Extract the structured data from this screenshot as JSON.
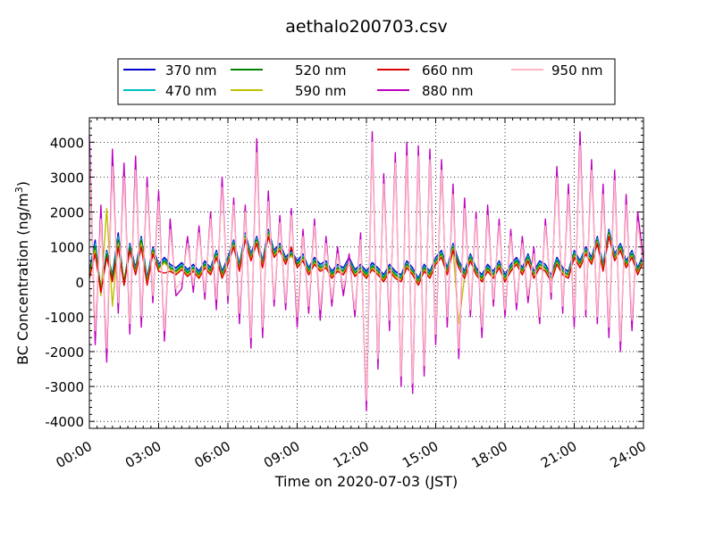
{
  "chart_data": {
    "type": "line",
    "title": "aethalo200703.csv",
    "xlabel": "Time on 2020-07-03 (JST)",
    "ylabel": "BC Concentration (ng/m",
    "ylabel_sup": "3",
    "ylabel_close": ")",
    "xlim": [
      "00:00",
      "24:00"
    ],
    "ylim": [
      -4200,
      4700
    ],
    "x_ticks": [
      "00:00",
      "03:00",
      "06:00",
      "09:00",
      "12:00",
      "15:00",
      "18:00",
      "21:00",
      "24:00"
    ],
    "y_ticks": [
      4000,
      3000,
      2000,
      1000,
      0,
      -1000,
      -2000,
      -3000,
      -4000
    ],
    "grid": true,
    "legend_placement": "top-center",
    "x_hours": [
      0,
      0.25,
      0.5,
      0.75,
      1,
      1.25,
      1.5,
      1.75,
      2,
      2.25,
      2.5,
      2.75,
      3,
      3.25,
      3.5,
      3.75,
      4,
      4.25,
      4.5,
      4.75,
      5,
      5.25,
      5.5,
      5.75,
      6,
      6.25,
      6.5,
      6.75,
      7,
      7.25,
      7.5,
      7.75,
      8,
      8.25,
      8.5,
      8.75,
      9,
      9.25,
      9.5,
      9.75,
      10,
      10.25,
      10.5,
      10.75,
      11,
      11.25,
      11.5,
      11.75,
      12,
      12.25,
      12.5,
      12.75,
      13,
      13.25,
      13.5,
      13.75,
      14,
      14.25,
      14.5,
      14.75,
      15,
      15.25,
      15.5,
      15.75,
      16,
      16.25,
      16.5,
      16.75,
      17,
      17.25,
      17.5,
      17.75,
      18,
      18.25,
      18.5,
      18.75,
      19,
      19.25,
      19.5,
      19.75,
      20,
      20.25,
      20.5,
      20.75,
      21,
      21.25,
      21.5,
      21.75,
      22,
      22.25,
      22.5,
      22.75,
      23,
      23.25,
      23.5,
      23.75,
      24
    ],
    "series": [
      {
        "name": "370 nm",
        "color": "#0000cc",
        "values": [
          300,
          1200,
          -300,
          900,
          200,
          1400,
          -100,
          1100,
          400,
          1300,
          100,
          1000,
          500,
          700,
          500,
          400,
          550,
          350,
          500,
          300,
          600,
          400,
          900,
          300,
          700,
          1200,
          500,
          1400,
          800,
          1300,
          600,
          1500,
          900,
          1100,
          700,
          900,
          600,
          800,
          400,
          700,
          500,
          600,
          300,
          500,
          400,
          700,
          350,
          500,
          300,
          550,
          400,
          200,
          500,
          300,
          200,
          600,
          400,
          100,
          500,
          300,
          700,
          900,
          400,
          1100,
          600,
          300,
          800,
          400,
          200,
          500,
          300,
          600,
          200,
          500,
          700,
          400,
          800,
          300,
          600,
          500,
          200,
          700,
          400,
          300,
          900,
          600,
          1000,
          700,
          1300,
          500,
          1500,
          800,
          1100,
          600,
          900,
          400,
          800
        ]
      },
      {
        "name": "470 nm",
        "color": "#00bfbf",
        "values": [
          250,
          1100,
          -250,
          850,
          150,
          1300,
          -50,
          1050,
          350,
          1250,
          50,
          950,
          450,
          650,
          450,
          350,
          500,
          300,
          450,
          250,
          550,
          350,
          850,
          250,
          650,
          1150,
          450,
          1350,
          750,
          1250,
          550,
          1450,
          850,
          1050,
          650,
          850,
          550,
          750,
          350,
          650,
          450,
          550,
          250,
          450,
          350,
          650,
          300,
          450,
          250,
          500,
          350,
          150,
          450,
          250,
          150,
          550,
          350,
          50,
          450,
          250,
          650,
          850,
          350,
          1050,
          550,
          250,
          750,
          350,
          150,
          450,
          250,
          550,
          150,
          450,
          650,
          350,
          750,
          250,
          550,
          450,
          150,
          650,
          350,
          250,
          850,
          550,
          950,
          650,
          1250,
          450,
          1450,
          750,
          1050,
          550,
          850,
          350,
          750
        ]
      },
      {
        "name": "520 nm",
        "color": "#008000",
        "values": [
          200,
          1000,
          -200,
          800,
          100,
          1200,
          0,
          1000,
          300,
          1200,
          0,
          900,
          400,
          600,
          400,
          300,
          450,
          250,
          400,
          200,
          500,
          300,
          800,
          200,
          600,
          1100,
          400,
          1300,
          700,
          1200,
          500,
          1400,
          800,
          1000,
          600,
          800,
          500,
          700,
          300,
          600,
          400,
          500,
          200,
          400,
          300,
          600,
          250,
          400,
          200,
          450,
          300,
          100,
          400,
          200,
          100,
          500,
          300,
          0,
          400,
          200,
          600,
          800,
          300,
          1000,
          500,
          200,
          700,
          300,
          100,
          400,
          200,
          500,
          100,
          400,
          600,
          300,
          700,
          200,
          500,
          400,
          100,
          600,
          300,
          200,
          800,
          500,
          900,
          600,
          1200,
          400,
          1400,
          700,
          1000,
          500,
          800,
          300,
          700
        ]
      },
      {
        "name": "590 nm",
        "color": "#bfbf00",
        "values": [
          150,
          900,
          -400,
          2100,
          -700,
          1100,
          -100,
          900,
          250,
          1100,
          -50,
          850,
          350,
          550,
          350,
          250,
          400,
          200,
          350,
          150,
          450,
          250,
          750,
          150,
          550,
          1050,
          350,
          1250,
          650,
          1150,
          450,
          1350,
          750,
          950,
          550,
          750,
          450,
          650,
          250,
          550,
          350,
          450,
          150,
          350,
          250,
          550,
          200,
          350,
          150,
          400,
          250,
          50,
          350,
          150,
          50,
          450,
          250,
          -50,
          350,
          150,
          550,
          750,
          250,
          950,
          -1200,
          150,
          650,
          250,
          50,
          350,
          150,
          450,
          50,
          350,
          550,
          250,
          650,
          150,
          450,
          350,
          50,
          550,
          250,
          150,
          750,
          450,
          850,
          550,
          1150,
          350,
          1350,
          650,
          950,
          450,
          750,
          250,
          650
        ]
      },
      {
        "name": "660 nm",
        "color": "#dd0000",
        "values": [
          100,
          800,
          -300,
          700,
          0,
          1000,
          -100,
          900,
          200,
          1000,
          -100,
          800,
          300,
          250,
          300,
          200,
          350,
          150,
          300,
          100,
          400,
          200,
          700,
          100,
          500,
          1000,
          300,
          1200,
          600,
          1100,
          400,
          1300,
          700,
          900,
          500,
          1000,
          400,
          600,
          200,
          500,
          300,
          400,
          100,
          300,
          200,
          500,
          150,
          300,
          100,
          350,
          200,
          0,
          300,
          100,
          0,
          400,
          200,
          -100,
          300,
          100,
          500,
          700,
          200,
          900,
          400,
          100,
          600,
          200,
          0,
          300,
          100,
          400,
          0,
          300,
          500,
          200,
          600,
          100,
          400,
          300,
          0,
          500,
          200,
          100,
          700,
          400,
          800,
          500,
          1100,
          300,
          1300,
          600,
          900,
          400,
          700,
          200,
          600
        ]
      },
      {
        "name": "880 nm",
        "color": "#bf00bf",
        "values": [
          4200,
          -1800,
          2200,
          -2300,
          3800,
          -900,
          3400,
          -1500,
          3600,
          -1300,
          3000,
          -600,
          2600,
          -1700,
          1800,
          -400,
          -200,
          1300,
          -300,
          1600,
          -500,
          2000,
          -800,
          3000,
          -600,
          2400,
          -1200,
          2200,
          -1900,
          4100,
          -1600,
          2600,
          -700,
          1900,
          -800,
          2100,
          -1300,
          1500,
          -900,
          1800,
          -1100,
          1300,
          -700,
          1000,
          -400,
          800,
          -1000,
          1400,
          -3700,
          4300,
          -2500,
          3100,
          -1400,
          3700,
          -3000,
          4000,
          -3200,
          3900,
          -2700,
          3800,
          -1800,
          3500,
          -1300,
          2800,
          -2200,
          2400,
          -1000,
          2000,
          -1600,
          2200,
          -700,
          1800,
          -1000,
          1500,
          -800,
          1300,
          -600,
          1000,
          -1200,
          1800,
          -500,
          3300,
          -900,
          2800,
          -1300,
          4300,
          -1000,
          3500,
          -1200,
          2800,
          -1600,
          3200,
          -2000,
          2500,
          -1400,
          2000,
          600
        ]
      },
      {
        "name": "950 nm",
        "color": "#ffb6c1",
        "values": [
          3700,
          -1400,
          1800,
          -1900,
          3300,
          -600,
          3000,
          -1200,
          3200,
          -1000,
          2700,
          -400,
          2300,
          -1400,
          1500,
          -200,
          0,
          1100,
          -100,
          1400,
          -300,
          1800,
          -500,
          2700,
          -400,
          2200,
          -900,
          2000,
          -1600,
          3700,
          -1300,
          2300,
          -500,
          1700,
          -600,
          1900,
          -1000,
          1300,
          -700,
          1600,
          -800,
          1100,
          -500,
          800,
          -200,
          600,
          -800,
          1200,
          -3400,
          4000,
          -2200,
          2800,
          -1100,
          3400,
          -2700,
          3600,
          -2900,
          3600,
          -2400,
          3500,
          -1500,
          3200,
          -1000,
          2500,
          -1900,
          2100,
          -800,
          1800,
          -1300,
          1900,
          -500,
          1600,
          -800,
          1300,
          -600,
          1100,
          -400,
          800,
          -1000,
          1600,
          -300,
          3000,
          -700,
          2500,
          -1000,
          3900,
          -800,
          3200,
          -1000,
          2500,
          -1300,
          2900,
          -1700,
          2200,
          -1100,
          1700,
          400
        ]
      }
    ]
  }
}
